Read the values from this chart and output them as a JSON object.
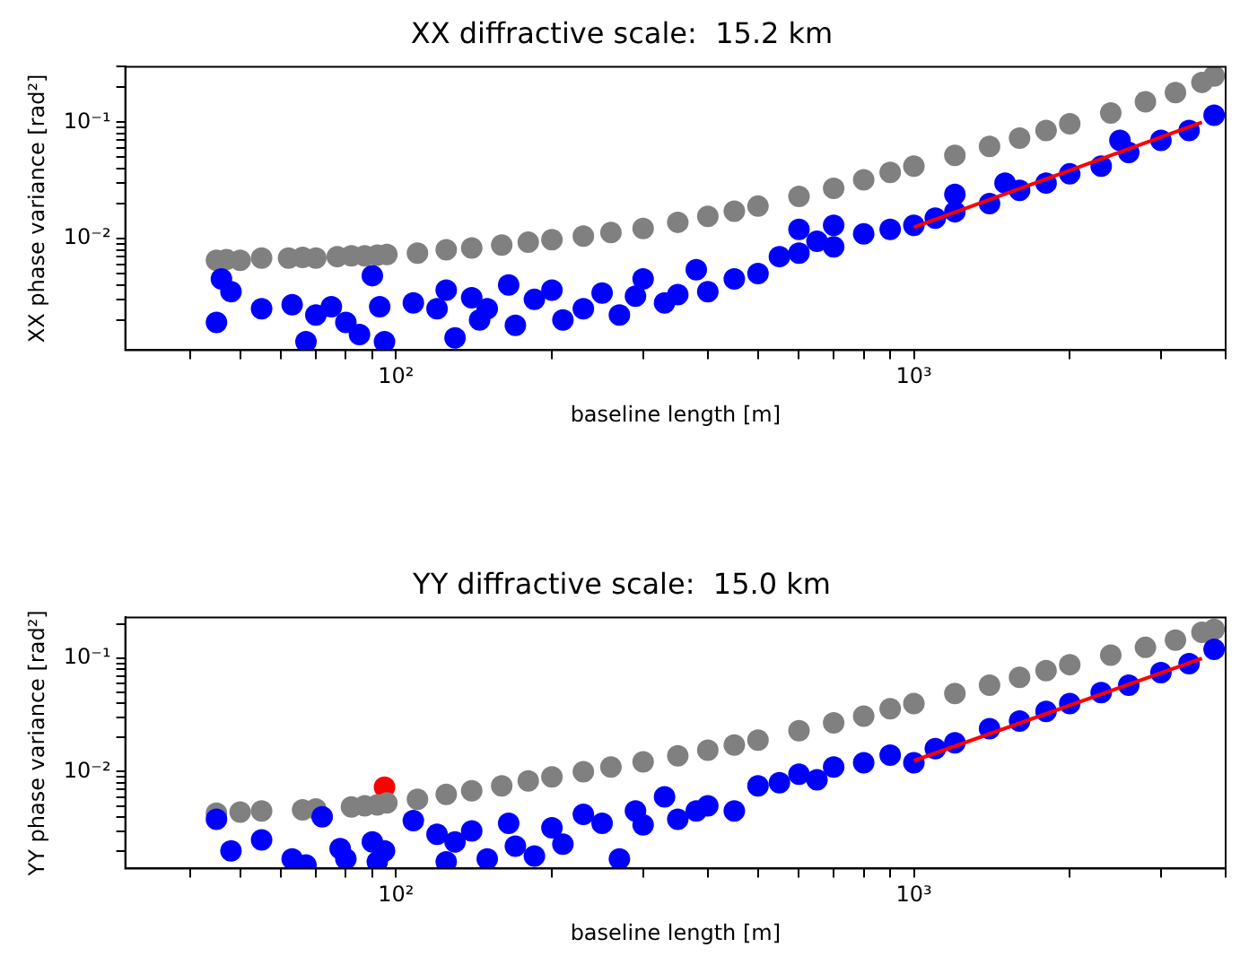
{
  "chart_data": [
    {
      "type": "scatter",
      "title": "XX diffractive scale:  15.2 km",
      "xlabel": "baseline length [m]",
      "ylabel": "XX phase variance [rad²]",
      "log": "xy",
      "grid": false,
      "legend": false,
      "marker": "circle",
      "xlim": [
        30,
        4000
      ],
      "ylim": [
        0.0011,
        0.3
      ],
      "xticks": [
        {
          "value": 40,
          "label": null
        },
        {
          "value": 50,
          "label": null
        },
        {
          "value": 60,
          "label": null
        },
        {
          "value": 70,
          "label": null
        },
        {
          "value": 80,
          "label": null
        },
        {
          "value": 90,
          "label": null
        },
        {
          "value": 100,
          "label": "10²"
        },
        {
          "value": 200,
          "label": null
        },
        {
          "value": 300,
          "label": null
        },
        {
          "value": 400,
          "label": null
        },
        {
          "value": 500,
          "label": null
        },
        {
          "value": 600,
          "label": null
        },
        {
          "value": 700,
          "label": null
        },
        {
          "value": 800,
          "label": null
        },
        {
          "value": 900,
          "label": null
        },
        {
          "value": 1000,
          "label": "10³"
        },
        {
          "value": 2000,
          "label": null
        },
        {
          "value": 3000,
          "label": null
        },
        {
          "value": 4000,
          "label": null
        }
      ],
      "yticks": [
        {
          "value": 0.002,
          "label": null
        },
        {
          "value": 0.003,
          "label": null
        },
        {
          "value": 0.004,
          "label": null
        },
        {
          "value": 0.005,
          "label": null
        },
        {
          "value": 0.006,
          "label": null
        },
        {
          "value": 0.007,
          "label": null
        },
        {
          "value": 0.008,
          "label": null
        },
        {
          "value": 0.009,
          "label": null
        },
        {
          "value": 0.01,
          "label": "10⁻²"
        },
        {
          "value": 0.02,
          "label": null
        },
        {
          "value": 0.03,
          "label": null
        },
        {
          "value": 0.04,
          "label": null
        },
        {
          "value": 0.05,
          "label": null
        },
        {
          "value": 0.06,
          "label": null
        },
        {
          "value": 0.07,
          "label": null
        },
        {
          "value": 0.08,
          "label": null
        },
        {
          "value": 0.09,
          "label": null
        },
        {
          "value": 0.1,
          "label": "10⁻¹"
        },
        {
          "value": 0.2,
          "label": null
        },
        {
          "value": 0.3,
          "label": null
        }
      ],
      "series": [
        {
          "color": "#0000ff",
          "x": [
            45,
            46,
            48,
            55,
            63,
            67,
            70,
            75,
            80,
            85,
            90,
            93,
            95,
            108,
            120,
            125,
            130,
            140,
            145,
            150,
            165,
            170,
            185,
            200,
            210,
            230,
            250,
            270,
            290,
            300,
            330,
            350,
            380,
            400,
            450,
            500,
            550,
            600,
            600,
            650,
            700,
            700,
            800,
            900,
            1000,
            1100,
            1200,
            1200,
            1400,
            1500,
            1600,
            1800,
            2000,
            2300,
            2500,
            2600,
            3000,
            3400,
            3800
          ],
          "values": [
            0.0019,
            0.0045,
            0.0035,
            0.0025,
            0.0027,
            0.0013,
            0.0022,
            0.0026,
            0.0019,
            0.0015,
            0.0048,
            0.0026,
            0.0013,
            0.0028,
            0.0025,
            0.0036,
            0.0014,
            0.0031,
            0.002,
            0.0025,
            0.004,
            0.0018,
            0.003,
            0.0036,
            0.002,
            0.0025,
            0.0034,
            0.0022,
            0.0032,
            0.0045,
            0.0028,
            0.0033,
            0.0054,
            0.0035,
            0.0045,
            0.005,
            0.007,
            0.0075,
            0.012,
            0.0095,
            0.0085,
            0.013,
            0.011,
            0.012,
            0.013,
            0.015,
            0.017,
            0.024,
            0.02,
            0.03,
            0.026,
            0.03,
            0.036,
            0.042,
            0.07,
            0.055,
            0.07,
            0.085,
            0.115
          ]
        },
        {
          "color": "#808080",
          "x": [
            45,
            47,
            50,
            55,
            62,
            66,
            70,
            77,
            82,
            87,
            92,
            96,
            110,
            125,
            140,
            160,
            180,
            200,
            230,
            260,
            300,
            350,
            400,
            450,
            500,
            600,
            700,
            800,
            900,
            1000,
            1200,
            1400,
            1600,
            1800,
            2000,
            2400,
            2800,
            3200,
            3600,
            3800
          ],
          "values": [
            0.0065,
            0.0066,
            0.0065,
            0.0068,
            0.0068,
            0.0069,
            0.0068,
            0.007,
            0.0071,
            0.0071,
            0.0072,
            0.0073,
            0.0075,
            0.008,
            0.0083,
            0.0088,
            0.0093,
            0.0098,
            0.0105,
            0.0113,
            0.0122,
            0.0138,
            0.0155,
            0.0172,
            0.019,
            0.023,
            0.027,
            0.032,
            0.037,
            0.042,
            0.052,
            0.062,
            0.073,
            0.085,
            0.097,
            0.12,
            0.15,
            0.18,
            0.22,
            0.25
          ]
        },
        {
          "type": "line",
          "marker": "none",
          "color": "#ff0000",
          "x": [
            1000,
            3600
          ],
          "values": [
            0.0125,
            0.1
          ]
        }
      ]
    },
    {
      "type": "scatter",
      "title": "YY diffractive scale:  15.0 km",
      "xlabel": "baseline length [m]",
      "ylabel": "YY phase variance [rad²]",
      "log": "xy",
      "grid": false,
      "legend": false,
      "marker": "circle",
      "xlim": [
        30,
        4000
      ],
      "ylim": [
        0.0014,
        0.23
      ],
      "xticks": [
        {
          "value": 40,
          "label": null
        },
        {
          "value": 50,
          "label": null
        },
        {
          "value": 60,
          "label": null
        },
        {
          "value": 70,
          "label": null
        },
        {
          "value": 80,
          "label": null
        },
        {
          "value": 90,
          "label": null
        },
        {
          "value": 100,
          "label": "10²"
        },
        {
          "value": 200,
          "label": null
        },
        {
          "value": 300,
          "label": null
        },
        {
          "value": 400,
          "label": null
        },
        {
          "value": 500,
          "label": null
        },
        {
          "value": 600,
          "label": null
        },
        {
          "value": 700,
          "label": null
        },
        {
          "value": 800,
          "label": null
        },
        {
          "value": 900,
          "label": null
        },
        {
          "value": 1000,
          "label": "10³"
        },
        {
          "value": 2000,
          "label": null
        },
        {
          "value": 3000,
          "label": null
        },
        {
          "value": 4000,
          "label": null
        }
      ],
      "yticks": [
        {
          "value": 0.002,
          "label": null
        },
        {
          "value": 0.003,
          "label": null
        },
        {
          "value": 0.004,
          "label": null
        },
        {
          "value": 0.005,
          "label": null
        },
        {
          "value": 0.006,
          "label": null
        },
        {
          "value": 0.007,
          "label": null
        },
        {
          "value": 0.008,
          "label": null
        },
        {
          "value": 0.009,
          "label": null
        },
        {
          "value": 0.01,
          "label": "10⁻²"
        },
        {
          "value": 0.02,
          "label": null
        },
        {
          "value": 0.03,
          "label": null
        },
        {
          "value": 0.04,
          "label": null
        },
        {
          "value": 0.05,
          "label": null
        },
        {
          "value": 0.06,
          "label": null
        },
        {
          "value": 0.07,
          "label": null
        },
        {
          "value": 0.08,
          "label": null
        },
        {
          "value": 0.09,
          "label": null
        },
        {
          "value": 0.1,
          "label": "10⁻¹"
        },
        {
          "value": 0.2,
          "label": null
        }
      ],
      "series": [
        {
          "color": "#0000ff",
          "x": [
            45,
            48,
            55,
            63,
            67,
            72,
            78,
            80,
            90,
            92,
            95,
            108,
            120,
            125,
            130,
            140,
            150,
            165,
            170,
            185,
            200,
            210,
            230,
            250,
            270,
            290,
            300,
            330,
            350,
            380,
            400,
            450,
            500,
            550,
            600,
            650,
            700,
            800,
            900,
            1000,
            1100,
            1200,
            1400,
            1600,
            1800,
            2000,
            2300,
            2600,
            3000,
            3400,
            3800
          ],
          "values": [
            0.0038,
            0.002,
            0.0025,
            0.0017,
            0.0015,
            0.004,
            0.0021,
            0.0017,
            0.0024,
            0.0016,
            0.002,
            0.0037,
            0.0028,
            0.0016,
            0.0024,
            0.003,
            0.0017,
            0.0035,
            0.0022,
            0.0018,
            0.0032,
            0.0023,
            0.0042,
            0.0035,
            0.0017,
            0.0045,
            0.0034,
            0.006,
            0.0038,
            0.0045,
            0.005,
            0.0045,
            0.0075,
            0.008,
            0.0095,
            0.0085,
            0.011,
            0.012,
            0.014,
            0.012,
            0.016,
            0.018,
            0.024,
            0.028,
            0.034,
            0.04,
            0.05,
            0.058,
            0.075,
            0.09,
            0.12
          ]
        },
        {
          "color": "#808080",
          "x": [
            45,
            50,
            55,
            66,
            70,
            82,
            87,
            92,
            96,
            110,
            125,
            140,
            160,
            180,
            200,
            230,
            260,
            300,
            350,
            400,
            450,
            500,
            600,
            700,
            800,
            900,
            1000,
            1200,
            1400,
            1600,
            1800,
            2000,
            2400,
            2800,
            3200,
            3600,
            3800
          ],
          "values": [
            0.0043,
            0.0044,
            0.0045,
            0.0046,
            0.0047,
            0.0049,
            0.005,
            0.0051,
            0.0053,
            0.0057,
            0.0063,
            0.0068,
            0.0075,
            0.0083,
            0.009,
            0.01,
            0.011,
            0.0122,
            0.0138,
            0.0155,
            0.0172,
            0.019,
            0.023,
            0.027,
            0.031,
            0.036,
            0.04,
            0.049,
            0.058,
            0.068,
            0.078,
            0.088,
            0.107,
            0.125,
            0.145,
            0.17,
            0.18
          ]
        },
        {
          "color": "#ff0000",
          "x": [
            95
          ],
          "values": [
            0.0073
          ]
        },
        {
          "type": "line",
          "marker": "none",
          "color": "#ff0000",
          "x": [
            1000,
            3600
          ],
          "values": [
            0.0125,
            0.1
          ]
        }
      ]
    }
  ]
}
